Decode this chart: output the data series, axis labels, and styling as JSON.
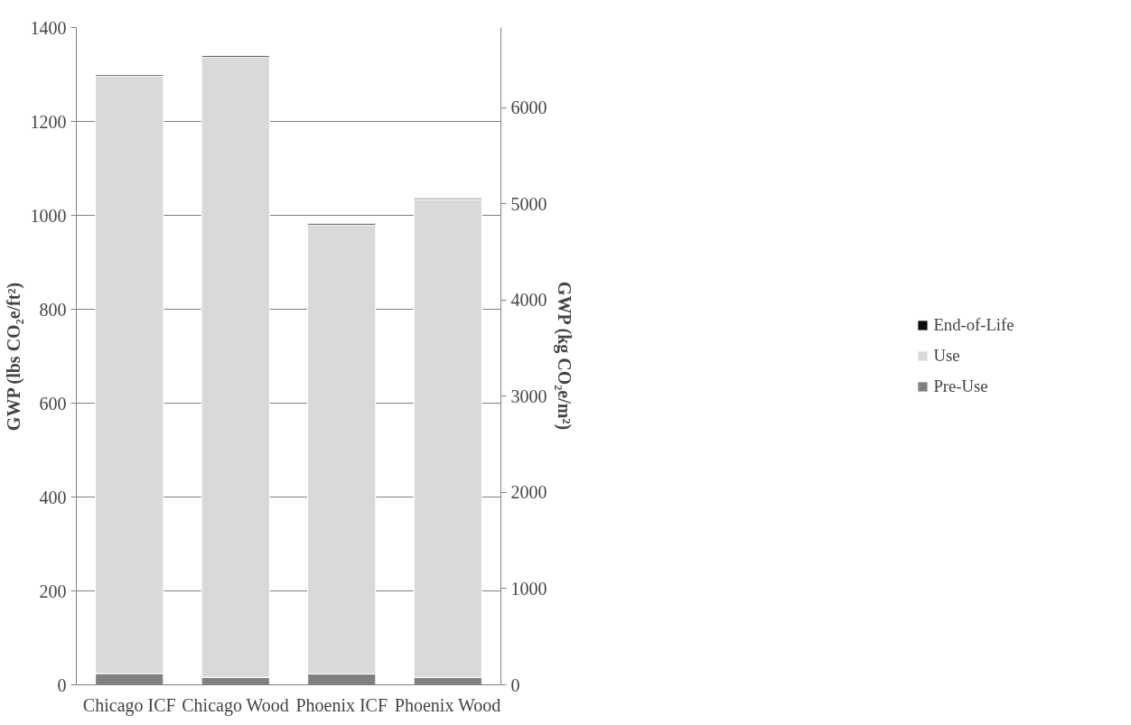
{
  "chart_data": {
    "type": "bar",
    "stacked": true,
    "categories": [
      "Chicago ICF",
      "Chicago Wood",
      "Phoenix ICF",
      "Phoenix Wood"
    ],
    "series": [
      {
        "name": "Pre-Use",
        "color": "#808080",
        "values": [
          24,
          16,
          23,
          16
        ]
      },
      {
        "name": "Use",
        "color": "#d9d9d9",
        "values": [
          1273,
          1321,
          956,
          1018
        ]
      },
      {
        "name": "End-of-Life",
        "color": "#0d0d0d",
        "values": [
          3,
          3,
          3,
          3
        ]
      }
    ],
    "ylabel": "GWP (lbs CO₂e/ft²)",
    "y2label": "GWP (kg CO₂e/m²)",
    "ylim": [
      0,
      1400
    ],
    "yticks": [
      0,
      200,
      400,
      600,
      800,
      1000,
      1200,
      1400
    ],
    "y2lim": [
      0,
      6835
    ],
    "y2ticks": [
      0,
      1000,
      2000,
      3000,
      4000,
      5000,
      6000
    ],
    "grid": "y",
    "legend": "right"
  }
}
